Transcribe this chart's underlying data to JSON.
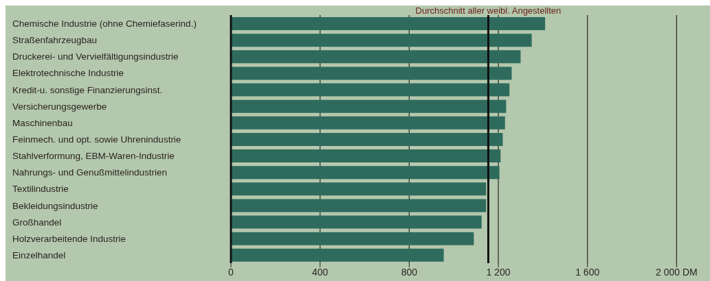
{
  "chart_data": {
    "type": "bar",
    "orientation": "horizontal",
    "categories": [
      "Chemische Industrie (ohne Chemiefaserind.)",
      "Straßenfahrzeugbau",
      "Druckerei- und Vervielfältigungsindustrie",
      "Elektrotechnische Industrie",
      "Kredit-u. sonstige Finanzierungsinst.",
      "Versicherungsgewerbe",
      "Maschinenbau",
      "Feinmech. und opt. sowie Uhrenindustrie",
      "Stahlverformung, EBM-Waren-Industrie",
      "Nahrungs- und Genußmittelindustrien",
      "Textilindustrie",
      "Bekleidungsindustrie",
      "Großhandel",
      "Holzverarbeitende Industrie",
      "Einzelhandel"
    ],
    "values": [
      1410,
      1350,
      1300,
      1260,
      1250,
      1235,
      1230,
      1220,
      1210,
      1205,
      1145,
      1145,
      1125,
      1090,
      955
    ],
    "color": "#2e6b5c",
    "xlim": [
      0,
      2150
    ],
    "xticks": [
      0,
      400,
      800,
      {
        "value": 1200,
        "label": "1 200"
      },
      {
        "value": 1600,
        "label": "1 600"
      },
      {
        "value": 2000,
        "label": "2 000 DM"
      }
    ],
    "grid": "x",
    "ref_lines": [
      {
        "axis": "x",
        "value": 1155,
        "label": "Durchschnitt aller weibl. Angestellten",
        "color": "#111111"
      }
    ]
  }
}
